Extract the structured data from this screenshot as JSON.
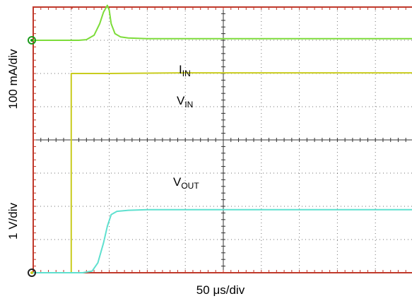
{
  "chart_data": {
    "type": "line",
    "xlabel": {
      "prefix": "50 ",
      "mu": "μ",
      "suffix": "s/div"
    },
    "ylabel_top": "100 mA/div",
    "ylabel_bottom": "1 V/div",
    "x_divisions": 10,
    "y_divisions": 8,
    "x_range_div": [
      0,
      10
    ],
    "y_range_div": [
      0,
      8
    ],
    "colors": {
      "border": "#c0392b",
      "grid": "#000000",
      "i_in": "#7ddc3a",
      "v_in": "#c9cc1e",
      "v_out": "#5fe0cf",
      "marker": "#1a9a1a"
    },
    "series": [
      {
        "key": "i_in",
        "label": {
          "main": "I",
          "sub": "IN"
        },
        "x": [
          0,
          1.2,
          1.4,
          1.6,
          1.75,
          1.85,
          1.95,
          2.0,
          2.05,
          2.15,
          2.3,
          2.5,
          3,
          10
        ],
        "y": [
          7.0,
          7.0,
          7.02,
          7.15,
          7.5,
          7.85,
          8.05,
          7.9,
          7.5,
          7.2,
          7.1,
          7.07,
          7.05,
          7.05
        ]
      },
      {
        "key": "v_in",
        "label": {
          "main": "V",
          "sub": "IN"
        },
        "x": [
          0,
          1.0,
          1.0,
          2,
          4,
          10
        ],
        "y": [
          0,
          0,
          6.0,
          6.0,
          6.02,
          6.02
        ]
      },
      {
        "key": "v_out",
        "label": {
          "main": "V",
          "sub": "OUT"
        },
        "x": [
          0,
          1.3,
          1.55,
          1.7,
          1.85,
          1.95,
          2.05,
          2.2,
          2.5,
          3,
          10
        ],
        "y": [
          0,
          0,
          0.05,
          0.3,
          0.9,
          1.4,
          1.75,
          1.85,
          1.88,
          1.9,
          1.9
        ]
      }
    ]
  }
}
